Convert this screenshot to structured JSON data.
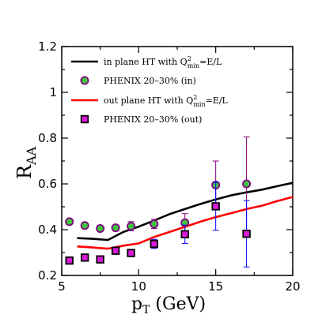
{
  "chart_data": {
    "type": "line",
    "title": "",
    "xlabel": {
      "main": "p",
      "sub": "T",
      "suffix": " (GeV)"
    },
    "ylabel": {
      "main": "R",
      "sub": "AA"
    },
    "xlim": [
      5,
      20
    ],
    "ylim": [
      0.2,
      1.2
    ],
    "xticks": [
      5,
      10,
      15,
      20
    ],
    "yticks": [
      0.2,
      0.4,
      0.6,
      0.8,
      1.0,
      1.2
    ],
    "ytick_labels": [
      "0.2",
      "0.4",
      "0.6",
      "0.8",
      "1",
      "1.2"
    ],
    "xtick_labels": [
      "5",
      "10",
      "15",
      "20"
    ],
    "grid": false,
    "legend_position": "top-left",
    "series": [
      {
        "kind": "line",
        "legend": {
          "pre": "in plane HT with Q",
          "sup": "2",
          "sub": "min",
          "post": "=E/L"
        },
        "color": "#000000",
        "x": [
          6,
          7,
          8,
          9,
          10,
          11,
          12,
          13,
          14,
          15,
          16,
          17,
          18,
          19,
          20
        ],
        "y": [
          0.363,
          0.36,
          0.355,
          0.39,
          0.413,
          0.44,
          0.468,
          0.49,
          0.512,
          0.532,
          0.55,
          0.563,
          0.575,
          0.59,
          0.605
        ]
      },
      {
        "kind": "points",
        "legend": {
          "pre": "PHENIX 20–30% (in)",
          "sup": "",
          "sub": "",
          "post": ""
        },
        "marker": "circle",
        "face_color": "#3ec43e",
        "edge_color": "#800080",
        "points": [
          {
            "x": 5.5,
            "y": 0.435,
            "err": 0.0
          },
          {
            "x": 6.5,
            "y": 0.418,
            "err": 0.0
          },
          {
            "x": 7.5,
            "y": 0.405,
            "err": 0.0
          },
          {
            "x": 8.5,
            "y": 0.408,
            "err": 0.0
          },
          {
            "x": 9.5,
            "y": 0.415,
            "err": 0.02
          },
          {
            "x": 11,
            "y": 0.425,
            "err": 0.02
          },
          {
            "x": 13,
            "y": 0.43,
            "err": 0.04
          },
          {
            "x": 15,
            "y": 0.595,
            "err": 0.105
          },
          {
            "x": 17,
            "y": 0.6,
            "err": 0.205
          }
        ]
      },
      {
        "kind": "line",
        "legend": {
          "pre": "out plane HT with Q",
          "sup": "2",
          "sub": "min",
          "post": "=E/L"
        },
        "color": "#ff0000",
        "x": [
          6,
          7,
          8,
          9,
          10,
          11,
          12,
          13,
          14,
          15,
          16,
          17,
          18,
          19,
          20
        ],
        "y": [
          0.327,
          0.322,
          0.317,
          0.33,
          0.34,
          0.368,
          0.39,
          0.412,
          0.435,
          0.455,
          0.472,
          0.49,
          0.505,
          0.525,
          0.543
        ]
      },
      {
        "kind": "points",
        "legend": {
          "pre": "PHENIX 20–30% (out)",
          "sup": "",
          "sub": "",
          "post": ""
        },
        "marker": "square",
        "face_color": "#d81bd8",
        "edge_color": "#000000",
        "err_color": "#0000ff",
        "points": [
          {
            "x": 5.5,
            "y": 0.265,
            "err": 0.0
          },
          {
            "x": 6.5,
            "y": 0.278,
            "err": 0.0
          },
          {
            "x": 7.5,
            "y": 0.27,
            "err": 0.0
          },
          {
            "x": 8.5,
            "y": 0.308,
            "err": 0.0
          },
          {
            "x": 9.5,
            "y": 0.298,
            "err": 0.015
          },
          {
            "x": 11,
            "y": 0.338,
            "err": 0.02
          },
          {
            "x": 13,
            "y": 0.38,
            "err": 0.04
          },
          {
            "x": 15,
            "y": 0.502,
            "err": 0.105
          },
          {
            "x": 17,
            "y": 0.382,
            "err": 0.145
          }
        ]
      }
    ]
  }
}
